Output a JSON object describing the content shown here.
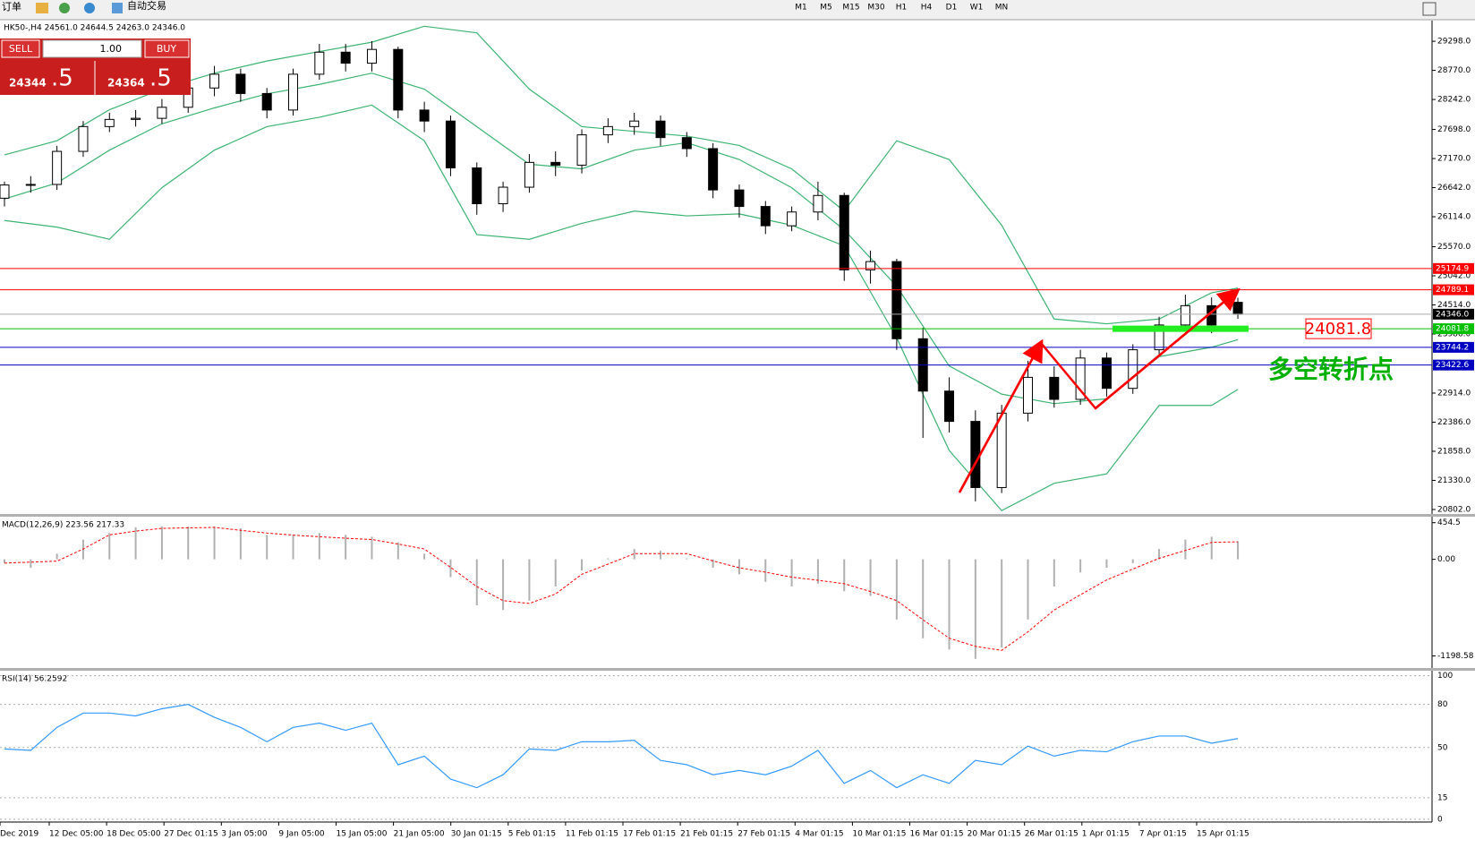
{
  "toolbar": {
    "order": "订单",
    "auto_trading": "自动交易",
    "timeframes": [
      "M1",
      "M5",
      "M15",
      "M30",
      "H1",
      "H4",
      "D1",
      "W1",
      "MN"
    ]
  },
  "trade_panel": {
    "sell": "SELL",
    "buy": "BUY",
    "lot": "1.00",
    "sell_price": {
      "main": "24344",
      "frac": ".5"
    },
    "buy_price": {
      "main": "24364",
      "frac": ".5"
    }
  },
  "chart_data": [
    {
      "type": "candlestick",
      "title": "HK50-,H4  24561.0 24644.5 24263.0 24346.0",
      "open": [
        26450,
        26690,
        26700,
        27300,
        27750,
        27880,
        27900,
        28100,
        28450,
        28700,
        28350,
        28050,
        28700,
        29100,
        28900,
        29150,
        28050,
        27850,
        27000,
        26350,
        26650,
        27100,
        27050,
        27600,
        27750,
        27850,
        27550,
        27350,
        26600,
        26300,
        25950,
        26200,
        26500,
        25150,
        25300,
        23900,
        22950,
        22400,
        21200,
        22550,
        23200,
        22800,
        23550,
        23000,
        23700,
        24150,
        24500,
        24561
      ],
      "high": [
        26750,
        26850,
        27400,
        27850,
        28000,
        28050,
        28250,
        28600,
        28850,
        28800,
        28450,
        28800,
        29250,
        29250,
        29300,
        29200,
        28200,
        27950,
        27100,
        26750,
        27250,
        27300,
        27700,
        27900,
        28000,
        27950,
        27650,
        27450,
        26700,
        26400,
        26300,
        26750,
        26550,
        25500,
        25350,
        24100,
        23200,
        22600,
        22700,
        23500,
        23400,
        23700,
        23650,
        23800,
        24300,
        24700,
        24650,
        24644.5
      ],
      "low": [
        26300,
        26550,
        26600,
        27200,
        27650,
        27750,
        27800,
        28000,
        28300,
        28200,
        27900,
        27950,
        28600,
        28750,
        28750,
        27900,
        27650,
        26850,
        26150,
        26200,
        26550,
        26850,
        26900,
        27450,
        27600,
        27400,
        27200,
        26450,
        26100,
        25800,
        25850,
        26050,
        24950,
        24900,
        23700,
        22100,
        22200,
        20950,
        21100,
        22400,
        22650,
        22700,
        22850,
        22900,
        23600,
        24050,
        24000,
        24263
      ],
      "close": [
        26690,
        26700,
        27300,
        27750,
        27880,
        27900,
        28100,
        28450,
        28700,
        28350,
        28050,
        28700,
        29100,
        28900,
        29150,
        28050,
        27850,
        27000,
        26350,
        26650,
        27100,
        27050,
        27600,
        27750,
        27850,
        27550,
        27350,
        26600,
        26300,
        25950,
        26200,
        26500,
        25150,
        25300,
        23900,
        22950,
        22400,
        21200,
        22550,
        23200,
        22800,
        23550,
        23000,
        23700,
        24150,
        24500,
        24150,
        24346
      ],
      "bands": {
        "color": "#3cb371",
        "x": [
          0,
          2,
          4,
          6,
          8,
          10,
          12,
          14,
          16,
          18,
          20,
          22,
          24,
          26,
          28,
          30,
          32,
          34,
          36,
          38,
          40,
          42,
          44,
          46,
          47
        ],
        "upper": [
          27237,
          27493,
          28055,
          28430,
          28719,
          28940,
          29111,
          29281,
          29570,
          29451,
          28430,
          27748,
          27663,
          27578,
          27408,
          26982,
          26216,
          27493,
          27152,
          25960,
          24258,
          24172,
          24258,
          24734,
          24819
        ],
        "middle": [
          26437,
          26726,
          27322,
          27800,
          28089,
          28344,
          28515,
          28719,
          28430,
          27748,
          27067,
          26982,
          27322,
          27458,
          27152,
          26641,
          25875,
          24853,
          23406,
          22895,
          22724,
          22810,
          23576,
          23746,
          23883
        ],
        "lower": [
          26045,
          25926,
          25705,
          26641,
          27322,
          27748,
          27919,
          28140,
          27493,
          25790,
          25705,
          25994,
          26216,
          26130,
          26165,
          25960,
          25585,
          23917,
          21873,
          20780,
          21277,
          21447,
          22690,
          22690,
          22980
        ]
      },
      "ylim": [
        20720,
        29673
      ],
      "yticks": [
        {
          "value": 29298,
          "label": "29298.0"
        },
        {
          "value": 28770,
          "label": "28770.0"
        },
        {
          "value": 28242,
          "label": "28242.0"
        },
        {
          "value": 27698,
          "label": "27698.0"
        },
        {
          "value": 27170,
          "label": "27170.0"
        },
        {
          "value": 26642,
          "label": "26642.0"
        },
        {
          "value": 26114,
          "label": "26114.0"
        },
        {
          "value": 25570,
          "label": "25570.0"
        },
        {
          "value": 25042,
          "label": "25042.0"
        },
        {
          "value": 24514,
          "label": "24514.0"
        },
        {
          "value": 23986,
          "label": "23986.0"
        },
        {
          "value": 22914,
          "label": "22914.0"
        },
        {
          "value": 22386,
          "label": "22386.0"
        },
        {
          "value": 21858,
          "label": "21858.0"
        },
        {
          "value": 21330,
          "label": "21330.0"
        },
        {
          "value": 20802,
          "label": "20802.0"
        }
      ],
      "hlines": [
        {
          "value": 25174.9,
          "color": "#ff0000"
        },
        {
          "value": 24789.1,
          "color": "#ff0000"
        },
        {
          "value": 24346.0,
          "label": "24346.0",
          "color": "#000000"
        },
        {
          "value": 24081.8,
          "color": "#00c000"
        },
        {
          "value": 23744.2,
          "color": "#0000c0"
        },
        {
          "value": 23422.6,
          "color": "#0000c0"
        }
      ],
      "annotation": "多空转折点"
    },
    {
      "type": "macd",
      "title": "MACD(12,26,9) 223.56 217.33",
      "values": [
        -47,
        -105,
        70,
        245,
        326,
        396,
        408,
        408,
        408,
        384,
        303,
        303,
        326,
        303,
        280,
        210,
        70,
        -221,
        -571,
        -629,
        -513,
        -338,
        -140,
        12,
        128,
        105,
        12,
        -105,
        -186,
        -280,
        -338,
        -303,
        -396,
        -454,
        -746,
        -979,
        -1118,
        -1235,
        -1095,
        -746,
        -338,
        -163,
        -105,
        -47,
        128,
        245,
        280,
        223.56
      ],
      "signal": [
        -47,
        -35,
        -23,
        128,
        303,
        350,
        384,
        390,
        396,
        360,
        326,
        300,
        280,
        262,
        245,
        190,
        128,
        -100,
        -338,
        -513,
        -548,
        -430,
        -186,
        -60,
        70,
        70,
        70,
        -20,
        -105,
        -160,
        -221,
        -260,
        -303,
        -400,
        -513,
        -750,
        -979,
        -1080,
        -1130,
        -900,
        -629,
        -440,
        -256,
        -120,
        12,
        110,
        210,
        217.33
      ],
      "color": "#b0b0b0",
      "signal_color": "#ff0000",
      "ylim": [
        -1349,
        529
      ],
      "yticks": [
        454.5,
        {
          "value": 0,
          "label": "0.00"
        },
        -1198.58
      ]
    },
    {
      "type": "rsi",
      "title": "RSI(14) 56.2592",
      "values": [
        49,
        48,
        64,
        74,
        74,
        72,
        77,
        80,
        71,
        64,
        54,
        64,
        67,
        62,
        67,
        38,
        44,
        28,
        22,
        31,
        49,
        48,
        54,
        54,
        55,
        41,
        38,
        31,
        34,
        31,
        37,
        48,
        25,
        34,
        22,
        31,
        25,
        41,
        38,
        51,
        44,
        48,
        47,
        54,
        58,
        58,
        53,
        56.2592
      ],
      "color": "#3399ff",
      "ylim": [
        -1.3,
        103.5
      ],
      "yticks": [
        100,
        80,
        50,
        15,
        0
      ]
    }
  ],
  "x_labels": [
    "Dec 2019",
    "12 Dec 05:00",
    "18 Dec 05:00",
    "27 Dec 01:15",
    "3 Jan 05:00",
    "9 Jan 05:00",
    "15 Jan 05:00",
    "21 Jan 05:00",
    "30 Jan 01:15",
    "5 Feb 01:15",
    "11 Feb 01:15",
    "17 Feb 01:15",
    "21 Feb 01:15",
    "27 Feb 01:15",
    "4 Mar 01:15",
    "10 Mar 01:15",
    "16 Mar 01:15",
    "20 Mar 01:15",
    "26 Mar 01:15",
    "1 Apr 01:15",
    "7 Apr 01:15",
    "15 Apr 01:15"
  ]
}
